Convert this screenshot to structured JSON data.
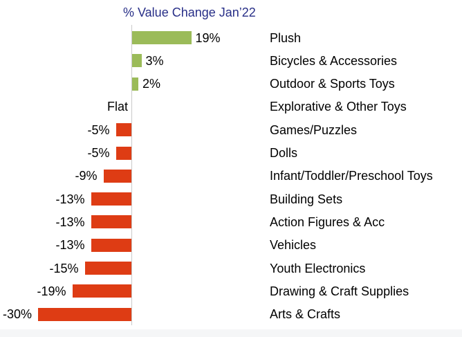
{
  "colors": {
    "positive_bar": "#9BBB59",
    "negative_bar": "#DE3C14",
    "title_text": "#272E87",
    "label_text": "#000000",
    "axis_line": "#C9C9C9",
    "background": "#FFFFFF",
    "bottom_strip": "#F5F6F7"
  },
  "chart_data": {
    "type": "bar",
    "orientation": "horizontal",
    "title": "% Value Change Jan’22",
    "xlabel": "",
    "ylabel": "",
    "xlim": [
      -30,
      19
    ],
    "grid": false,
    "legend": false,
    "categories": [
      "Plush",
      "Bicycles & Accessories",
      "Outdoor & Sports Toys",
      "Explorative & Other Toys",
      "Games/Puzzles",
      "Dolls",
      "Infant/Toddler/Preschool Toys",
      "Building Sets",
      "Action Figures & Acc",
      "Vehicles",
      "Youth Electronics",
      "Drawing & Craft Supplies",
      "Arts & Crafts"
    ],
    "values": [
      19,
      3,
      2,
      0,
      -5,
      -5,
      -9,
      -13,
      -13,
      -13,
      -15,
      -19,
      -30
    ],
    "value_labels": [
      "19%",
      "3%",
      "2%",
      "Flat",
      "-5%",
      "-5%",
      "-9%",
      "-13%",
      "-13%",
      "-13%",
      "-15%",
      "-19%",
      "-30%"
    ]
  }
}
